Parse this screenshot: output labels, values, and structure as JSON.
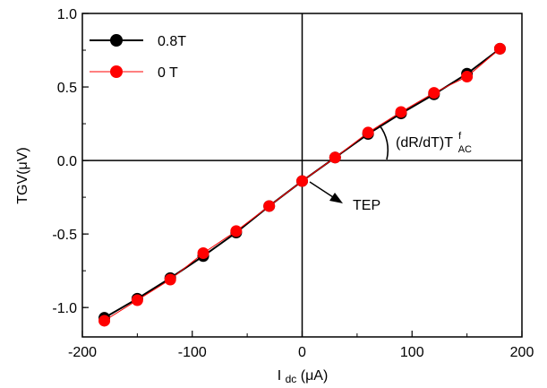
{
  "chart_data": {
    "type": "scatter",
    "xlabel": {
      "main": "I",
      "sub": "dc",
      "rest": "(μA)"
    },
    "ylabel": "TGV(μV)",
    "xlim": [
      -200,
      200
    ],
    "ylim": [
      -1.2,
      1.0
    ],
    "xticks": [
      -200,
      -100,
      0,
      100,
      200
    ],
    "xtick_labels": [
      "-200",
      "-100",
      "0",
      "100",
      "200"
    ],
    "yticks": [
      -1.0,
      -0.5,
      0.0,
      0.5,
      1.0
    ],
    "ytick_labels": [
      "-1.0",
      "-0.5",
      "0.0",
      "0.5",
      "1.0"
    ],
    "grid": false,
    "legend_position": "top-left",
    "series": [
      {
        "name": "0.8T",
        "color": "#000000",
        "line_color": "#000000",
        "x": [
          -180,
          -150,
          -120,
          -90,
          -60,
          -30,
          0,
          30,
          60,
          90,
          120,
          150,
          180
        ],
        "y": [
          -1.07,
          -0.94,
          -0.8,
          -0.65,
          -0.49,
          -0.31,
          -0.14,
          0.02,
          0.18,
          0.32,
          0.45,
          0.59,
          0.76
        ]
      },
      {
        "name": "0 T",
        "color": "#ff0000",
        "line_color": "#ff0000",
        "x": [
          -180,
          -150,
          -120,
          -90,
          -60,
          -30,
          0,
          30,
          60,
          90,
          120,
          150,
          180
        ],
        "y": [
          -1.09,
          -0.95,
          -0.81,
          -0.63,
          -0.48,
          -0.31,
          -0.14,
          0.02,
          0.19,
          0.33,
          0.46,
          0.57,
          0.76
        ]
      }
    ],
    "annotations": {
      "tep": {
        "label": "TEP"
      },
      "slope": {
        "main": "(dR/dT)T",
        "sup": "f",
        "sub": "AC"
      }
    }
  }
}
